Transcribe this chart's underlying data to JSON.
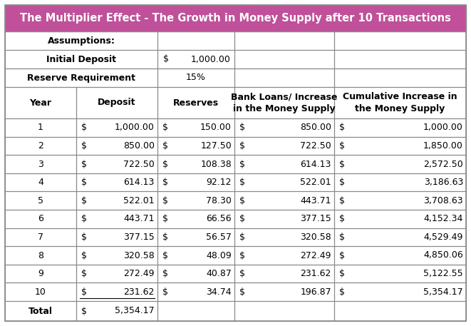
{
  "title": "The Multiplier Effect - The Growth in Money Supply after 10 Transactions",
  "title_bg": "#c0509a",
  "title_fg": "#ffffff",
  "assumptions_label": "Assumptions:",
  "initial_deposit_label": "Initial Deposit",
  "initial_deposit_value": "1,000.00",
  "reserve_req_label": "Reserve Requirement",
  "reserve_req_value": "15%",
  "col_headers": [
    "Year",
    "Deposit",
    "Reserves",
    "Bank Loans/ Increase\nin the Money Supply",
    "Cumulative Increase in\nthe Money Supply"
  ],
  "years": [
    1,
    2,
    3,
    4,
    5,
    6,
    7,
    8,
    9,
    10
  ],
  "deposits": [
    "1,000.00",
    "850.00",
    "722.50",
    "614.13",
    "522.01",
    "443.71",
    "377.15",
    "320.58",
    "272.49",
    "231.62"
  ],
  "reserves": [
    "150.00",
    "127.50",
    "108.38",
    "92.12",
    "78.30",
    "66.56",
    "56.57",
    "48.09",
    "40.87",
    "34.74"
  ],
  "bank_loans": [
    "850.00",
    "722.50",
    "614.13",
    "522.01",
    "443.71",
    "377.15",
    "320.58",
    "272.49",
    "231.62",
    "196.87"
  ],
  "cumulative": [
    "1,000.00",
    "1,850.00",
    "2,572.50",
    "3,186.63",
    "3,708.63",
    "4,152.34",
    "4,529.49",
    "4,850.06",
    "5,122.55",
    "5,354.17"
  ],
  "total_label": "Total",
  "total_deposit": "5,354.17",
  "border_color": "#888888",
  "text_color": "#000000",
  "header_fontsize": 9,
  "data_fontsize": 9,
  "title_fontsize": 10.5,
  "fig_w": 6.61,
  "fig_h": 4.57,
  "dpi": 100
}
